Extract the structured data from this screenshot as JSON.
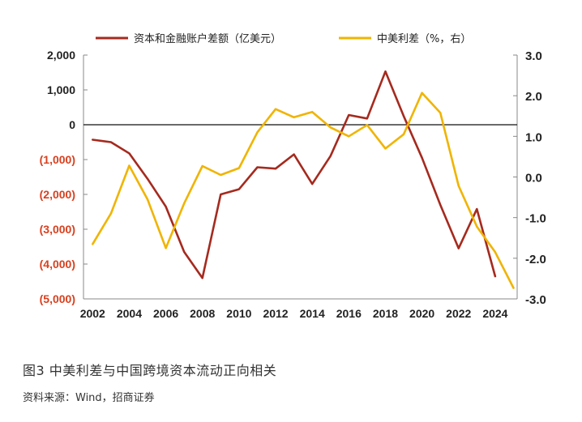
{
  "chart_data": {
    "type": "line",
    "x": [
      2002,
      2003,
      2004,
      2005,
      2006,
      2007,
      2008,
      2009,
      2010,
      2011,
      2012,
      2013,
      2014,
      2015,
      2016,
      2017,
      2018,
      2019,
      2020,
      2021,
      2022,
      2023,
      2024,
      2025
    ],
    "series": [
      {
        "name": "资本和金融账户差额（亿美元）",
        "axis": "left",
        "color": "#A52A1E",
        "values": [
          -430,
          -500,
          -820,
          -1550,
          -2350,
          -3650,
          -4400,
          -2000,
          -1850,
          -1220,
          -1260,
          -850,
          -1700,
          -900,
          280,
          180,
          1530,
          250,
          -950,
          -2300,
          -3550,
          -2420,
          -4350,
          null
        ]
      },
      {
        "name": "中美利差（%，右）",
        "axis": "right",
        "color": "#F0B400",
        "values": [
          -1.65,
          -0.9,
          0.28,
          -0.55,
          -1.75,
          -0.65,
          0.27,
          0.05,
          0.22,
          1.1,
          1.67,
          1.47,
          1.6,
          1.22,
          1.0,
          1.28,
          0.7,
          1.05,
          2.07,
          1.58,
          -0.22,
          -1.22,
          -1.85,
          -2.73
        ]
      }
    ],
    "left_axis": {
      "min": -5000,
      "max": 2000,
      "ticks": [
        2000,
        1000,
        0,
        -1000,
        -2000,
        -3000,
        -4000,
        -5000
      ],
      "labels": [
        "2,000",
        "1,000",
        "0",
        "(1,000)",
        "(2,000)",
        "(3,000)",
        "(4,000)",
        "(5,000)"
      ]
    },
    "right_axis": {
      "min": -3.0,
      "max": 3.0,
      "ticks": [
        3,
        2,
        1,
        0,
        -1,
        -2,
        -3
      ],
      "labels": [
        "3.0",
        "2.0",
        "1.0",
        "0.0",
        "-1.0",
        "-2.0",
        "-3.0"
      ]
    },
    "x_tick_labels": [
      "2002",
      "2004",
      "2006",
      "2008",
      "2010",
      "2012",
      "2014",
      "2016",
      "2018",
      "2020",
      "2022",
      "2024"
    ],
    "x_tick_years": [
      2002,
      2004,
      2006,
      2008,
      2010,
      2012,
      2014,
      2016,
      2018,
      2020,
      2022,
      2024
    ],
    "colors": {
      "positive_label": "#222222",
      "negative_label": "#D9401F",
      "zero_line": "#111111"
    }
  },
  "caption": "图3  中美利差与中国跨境资本流动正向相关",
  "source": "资料来源：Wind，招商证券"
}
